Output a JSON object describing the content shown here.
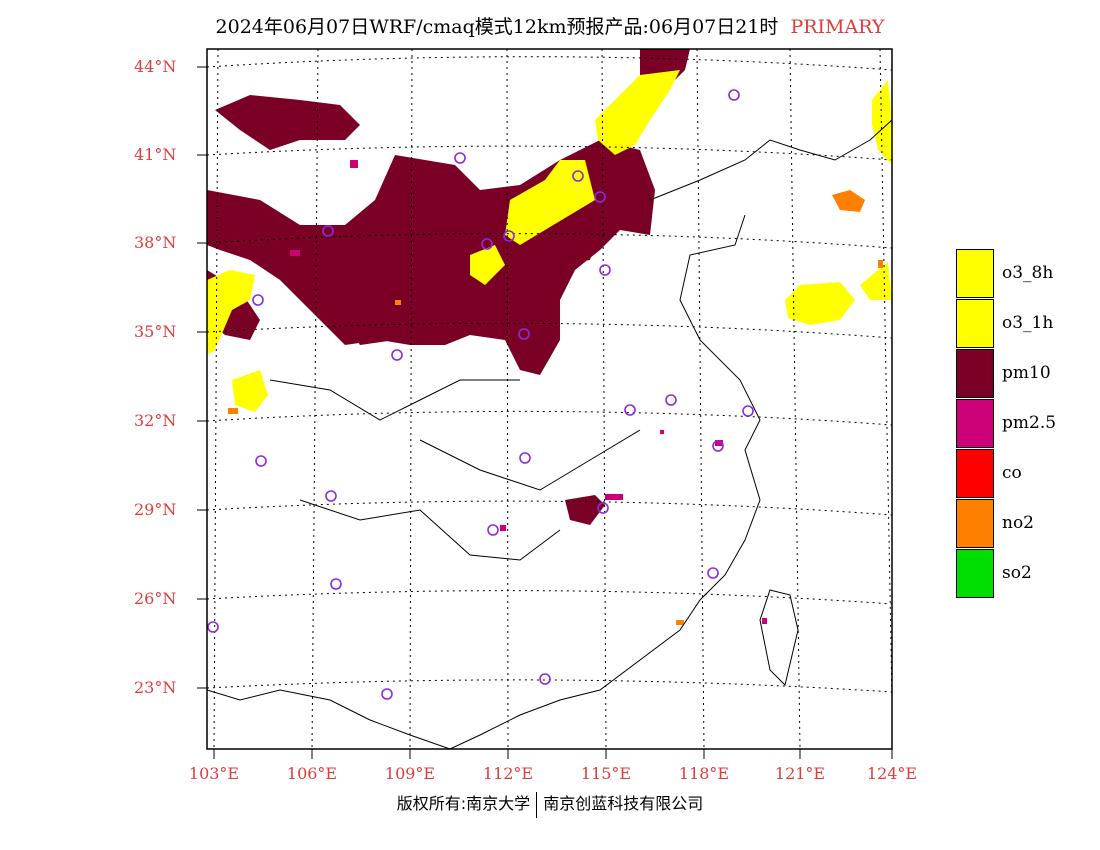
{
  "title": {
    "text": "2024年06月07日WRF/cmaq模式12km预报产品:06月07日21时",
    "tag": "PRIMARY"
  },
  "axes": {
    "lat_labels": [
      "44°N",
      "41°N",
      "38°N",
      "35°N",
      "32°N",
      "29°N",
      "26°N",
      "23°N"
    ],
    "lon_labels": [
      "103°E",
      "106°E",
      "109°E",
      "112°E",
      "115°E",
      "118°E",
      "121°E",
      "124°E"
    ]
  },
  "legend": {
    "items": [
      {
        "label": "o3_8h",
        "color": "#ffff00"
      },
      {
        "label": "o3_1h",
        "color": "#ffff00"
      },
      {
        "label": "pm10",
        "color": "#7a0026"
      },
      {
        "label": "pm2.5",
        "color": "#cc0077"
      },
      {
        "label": "co",
        "color": "#ff0000"
      },
      {
        "label": "no2",
        "color": "#ff7f00"
      },
      {
        "label": "so2",
        "color": "#00dd00"
      }
    ]
  },
  "footer": {
    "left": "版权所有:南京大学",
    "right": "南京创蓝科技有限公司"
  },
  "colors": {
    "pm10": "#7a0026",
    "pm25": "#cc0077",
    "o3": "#ffff00",
    "no2": "#ff7f00",
    "station": "#8a2be2",
    "grid": "#000000",
    "label": "#e03c3c"
  }
}
